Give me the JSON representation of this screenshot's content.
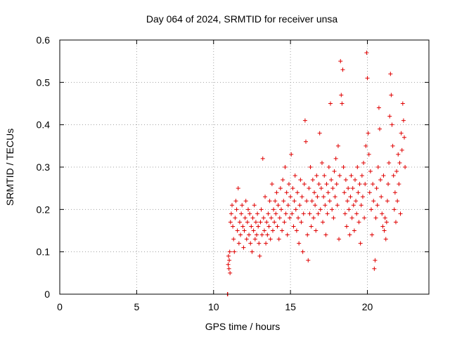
{
  "chart_data": {
    "type": "scatter",
    "title": "Day 064 of 2024, SRMTID for receiver unsa",
    "xlabel": "GPS time / hours",
    "ylabel": "SRMTID / TECUs",
    "xlim": [
      0,
      24
    ],
    "ylim": [
      0,
      0.6
    ],
    "xticks": [
      0,
      5,
      10,
      15,
      20
    ],
    "yticks": [
      0,
      0.1,
      0.2,
      0.3,
      0.4,
      0.5,
      0.6
    ],
    "xtick_labels": [
      "0",
      "5",
      "10",
      "15",
      "20"
    ],
    "ytick_labels": [
      "0",
      "0.1",
      "0.2",
      "0.3",
      "0.4",
      "0.5",
      "0.6"
    ],
    "grid": true,
    "marker": "plus",
    "color": "#e00000",
    "series": [
      {
        "name": "SRMTID",
        "points": [
          [
            10.9,
            0.0
          ],
          [
            10.92,
            0.0
          ],
          [
            10.95,
            0.07
          ],
          [
            10.97,
            0.09
          ],
          [
            11.0,
            0.06
          ],
          [
            11.02,
            0.08
          ],
          [
            11.05,
            0.1
          ],
          [
            11.07,
            0.05
          ],
          [
            11.1,
            0.17
          ],
          [
            11.15,
            0.19
          ],
          [
            11.2,
            0.21
          ],
          [
            11.25,
            0.16
          ],
          [
            11.3,
            0.13
          ],
          [
            11.35,
            0.1
          ],
          [
            11.4,
            0.18
          ],
          [
            11.45,
            0.22
          ],
          [
            11.5,
            0.2
          ],
          [
            11.55,
            0.15
          ],
          [
            11.6,
            0.25
          ],
          [
            11.65,
            0.12
          ],
          [
            11.7,
            0.17
          ],
          [
            11.75,
            0.14
          ],
          [
            11.8,
            0.19
          ],
          [
            11.85,
            0.21
          ],
          [
            11.9,
            0.16
          ],
          [
            11.95,
            0.11
          ],
          [
            12.0,
            0.15
          ],
          [
            12.05,
            0.18
          ],
          [
            12.1,
            0.22
          ],
          [
            12.15,
            0.13
          ],
          [
            12.2,
            0.17
          ],
          [
            12.25,
            0.2
          ],
          [
            12.3,
            0.14
          ],
          [
            12.35,
            0.19
          ],
          [
            12.4,
            0.12
          ],
          [
            12.45,
            0.16
          ],
          [
            12.5,
            0.1
          ],
          [
            12.55,
            0.18
          ],
          [
            12.6,
            0.15
          ],
          [
            12.65,
            0.21
          ],
          [
            12.7,
            0.13
          ],
          [
            12.75,
            0.17
          ],
          [
            12.8,
            0.14
          ],
          [
            12.85,
            0.19
          ],
          [
            12.9,
            0.16
          ],
          [
            12.95,
            0.12
          ],
          [
            13.0,
            0.09
          ],
          [
            13.05,
            0.17
          ],
          [
            13.1,
            0.2
          ],
          [
            13.15,
            0.14
          ],
          [
            13.2,
            0.32
          ],
          [
            13.25,
            0.18
          ],
          [
            13.3,
            0.15
          ],
          [
            13.35,
            0.23
          ],
          [
            13.4,
            0.12
          ],
          [
            13.45,
            0.17
          ],
          [
            13.5,
            0.14
          ],
          [
            13.55,
            0.19
          ],
          [
            13.6,
            0.16
          ],
          [
            13.65,
            0.22
          ],
          [
            13.7,
            0.13
          ],
          [
            13.75,
            0.18
          ],
          [
            13.8,
            0.26
          ],
          [
            13.85,
            0.15
          ],
          [
            13.9,
            0.2
          ],
          [
            13.95,
            0.17
          ],
          [
            14.0,
            0.22
          ],
          [
            14.05,
            0.19
          ],
          [
            14.1,
            0.24
          ],
          [
            14.15,
            0.16
          ],
          [
            14.2,
            0.21
          ],
          [
            14.25,
            0.13
          ],
          [
            14.3,
            0.18
          ],
          [
            14.35,
            0.25
          ],
          [
            14.4,
            0.2
          ],
          [
            14.45,
            0.15
          ],
          [
            14.5,
            0.27
          ],
          [
            14.55,
            0.22
          ],
          [
            14.6,
            0.17
          ],
          [
            14.65,
            0.3
          ],
          [
            14.7,
            0.19
          ],
          [
            14.75,
            0.24
          ],
          [
            14.8,
            0.14
          ],
          [
            14.85,
            0.21
          ],
          [
            14.9,
            0.26
          ],
          [
            14.95,
            0.18
          ],
          [
            15.0,
            0.23
          ],
          [
            15.05,
            0.33
          ],
          [
            15.1,
            0.19
          ],
          [
            15.15,
            0.25
          ],
          [
            15.2,
            0.16
          ],
          [
            15.25,
            0.22
          ],
          [
            15.3,
            0.28
          ],
          [
            15.35,
            0.2
          ],
          [
            15.4,
            0.15
          ],
          [
            15.45,
            0.24
          ],
          [
            15.5,
            0.18
          ],
          [
            15.55,
            0.12
          ],
          [
            15.6,
            0.21
          ],
          [
            15.65,
            0.27
          ],
          [
            15.7,
            0.17
          ],
          [
            15.75,
            0.23
          ],
          [
            15.8,
            0.1
          ],
          [
            15.85,
            0.19
          ],
          [
            15.9,
            0.26
          ],
          [
            15.95,
            0.41
          ],
          [
            16.0,
            0.36
          ],
          [
            16.05,
            0.22
          ],
          [
            16.1,
            0.14
          ],
          [
            16.15,
            0.08
          ],
          [
            16.2,
            0.25
          ],
          [
            16.25,
            0.19
          ],
          [
            16.3,
            0.3
          ],
          [
            16.35,
            0.16
          ],
          [
            16.4,
            0.22
          ],
          [
            16.45,
            0.27
          ],
          [
            16.5,
            0.18
          ],
          [
            16.55,
            0.24
          ],
          [
            16.6,
            0.21
          ],
          [
            16.65,
            0.15
          ],
          [
            16.7,
            0.28
          ],
          [
            16.75,
            0.23
          ],
          [
            16.8,
            0.19
          ],
          [
            16.85,
            0.26
          ],
          [
            16.9,
            0.38
          ],
          [
            16.95,
            0.2
          ],
          [
            17.0,
            0.25
          ],
          [
            17.05,
            0.31
          ],
          [
            17.1,
            0.17
          ],
          [
            17.15,
            0.23
          ],
          [
            17.2,
            0.28
          ],
          [
            17.25,
            0.21
          ],
          [
            17.3,
            0.14
          ],
          [
            17.35,
            0.26
          ],
          [
            17.4,
            0.19
          ],
          [
            17.45,
            0.24
          ],
          [
            17.5,
            0.3
          ],
          [
            17.55,
            0.22
          ],
          [
            17.6,
            0.45
          ],
          [
            17.65,
            0.27
          ],
          [
            17.7,
            0.2
          ],
          [
            17.75,
            0.25
          ],
          [
            17.8,
            0.18
          ],
          [
            17.85,
            0.29
          ],
          [
            17.9,
            0.23
          ],
          [
            17.95,
            0.32
          ],
          [
            18.0,
            0.26
          ],
          [
            18.05,
            0.21
          ],
          [
            18.1,
            0.35
          ],
          [
            18.15,
            0.13
          ],
          [
            18.2,
            0.28
          ],
          [
            18.25,
            0.55
          ],
          [
            18.3,
            0.47
          ],
          [
            18.35,
            0.45
          ],
          [
            18.4,
            0.53
          ],
          [
            18.45,
            0.3
          ],
          [
            18.5,
            0.24
          ],
          [
            18.55,
            0.19
          ],
          [
            18.6,
            0.27
          ],
          [
            18.65,
            0.16
          ],
          [
            18.7,
            0.22
          ],
          [
            18.75,
            0.25
          ],
          [
            18.8,
            0.2
          ],
          [
            18.85,
            0.14
          ],
          [
            18.9,
            0.23
          ],
          [
            18.95,
            0.28
          ],
          [
            19.0,
            0.18
          ],
          [
            19.05,
            0.25
          ],
          [
            19.1,
            0.21
          ],
          [
            19.15,
            0.15
          ],
          [
            19.2,
            0.27
          ],
          [
            19.25,
            0.22
          ],
          [
            19.3,
            0.19
          ],
          [
            19.35,
            0.3
          ],
          [
            19.4,
            0.24
          ],
          [
            19.45,
            0.17
          ],
          [
            19.5,
            0.26
          ],
          [
            19.55,
            0.12
          ],
          [
            19.6,
            0.21
          ],
          [
            19.65,
            0.28
          ],
          [
            19.7,
            0.23
          ],
          [
            19.75,
            0.31
          ],
          [
            19.8,
            0.18
          ],
          [
            19.85,
            0.26
          ],
          [
            19.9,
            0.35
          ],
          [
            19.95,
            0.57
          ],
          [
            20.0,
            0.51
          ],
          [
            20.05,
            0.38
          ],
          [
            20.1,
            0.33
          ],
          [
            20.15,
            0.24
          ],
          [
            20.2,
            0.29
          ],
          [
            20.25,
            0.2
          ],
          [
            20.3,
            0.14
          ],
          [
            20.35,
            0.26
          ],
          [
            20.4,
            0.22
          ],
          [
            20.45,
            0.06
          ],
          [
            20.5,
            0.08
          ],
          [
            20.55,
            0.18
          ],
          [
            20.6,
            0.25
          ],
          [
            20.65,
            0.21
          ],
          [
            20.7,
            0.3
          ],
          [
            20.75,
            0.44
          ],
          [
            20.8,
            0.39
          ],
          [
            20.85,
            0.27
          ],
          [
            20.9,
            0.23
          ],
          [
            20.95,
            0.19
          ],
          [
            21.0,
            0.16
          ],
          [
            21.05,
            0.28
          ],
          [
            21.1,
            0.15
          ],
          [
            21.15,
            0.18
          ],
          [
            21.2,
            0.13
          ],
          [
            21.25,
            0.17
          ],
          [
            21.3,
            0.22
          ],
          [
            21.35,
            0.26
          ],
          [
            21.4,
            0.31
          ],
          [
            21.45,
            0.42
          ],
          [
            21.5,
            0.52
          ],
          [
            21.55,
            0.47
          ],
          [
            21.6,
            0.4
          ],
          [
            21.65,
            0.35
          ],
          [
            21.7,
            0.28
          ],
          [
            21.75,
            0.2
          ],
          [
            21.8,
            0.24
          ],
          [
            21.85,
            0.17
          ],
          [
            21.9,
            0.29
          ],
          [
            21.95,
            0.22
          ],
          [
            22.0,
            0.33
          ],
          [
            22.05,
            0.26
          ],
          [
            22.1,
            0.31
          ],
          [
            22.15,
            0.19
          ],
          [
            22.2,
            0.38
          ],
          [
            22.25,
            0.34
          ],
          [
            22.3,
            0.45
          ],
          [
            22.35,
            0.41
          ],
          [
            22.4,
            0.37
          ],
          [
            22.45,
            0.3
          ]
        ]
      }
    ]
  }
}
